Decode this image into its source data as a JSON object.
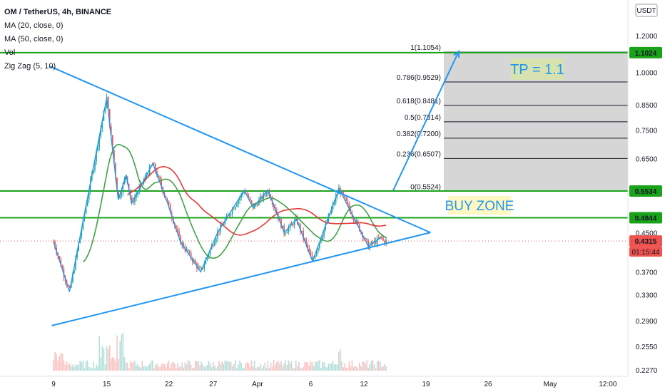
{
  "header": {
    "title": "OM / TetherUS, 4h, BINANCE",
    "indicators": [
      "MA (20, close, 0)",
      "MA (50, close, 0)",
      "Vol",
      "Zig Zag (5, 10)"
    ]
  },
  "axis": {
    "currency": "USDT",
    "price_ticks": [
      "1.2000",
      "1.0000",
      "0.8500",
      "0.7500",
      "0.6500",
      "0.5500",
      "0.4500",
      "0.3700",
      "0.3300",
      "0.2900",
      "0.2550",
      "0.2270"
    ],
    "price_values": [
      1.2,
      1.0,
      0.85,
      0.75,
      0.65,
      0.55,
      0.45,
      0.37,
      0.33,
      0.29,
      0.255,
      0.227
    ],
    "time_ticks": [
      "9",
      "15",
      "22",
      "27",
      "Apr",
      "6",
      "12",
      "19",
      "26",
      "May",
      "12:00"
    ]
  },
  "price_tags": [
    {
      "label": "1.1024",
      "value": 1.1024,
      "color": "#1aa31a"
    },
    {
      "label": "0.5534",
      "value": 0.5534,
      "color": "#1aa31a"
    },
    {
      "label": "0.4844",
      "value": 0.4844,
      "color": "#1aa31a"
    },
    {
      "label": "0.4315",
      "value": 0.4315,
      "color": "#ef5350"
    }
  ],
  "countdown": "01:15:44",
  "fib_levels": [
    {
      "label": "1(1.1054)",
      "value": 1.1054
    },
    {
      "label": "0.786(0.9529)",
      "value": 0.9529
    },
    {
      "label": "0.618(0.8481)",
      "value": 0.8481
    },
    {
      "label": "0.5(0.7814)",
      "value": 0.7814
    },
    {
      "label": "0.382(0.7200)",
      "value": 0.72
    },
    {
      "label": "0.236(0.6507)",
      "value": 0.6507
    },
    {
      "label": "0(0.5524)",
      "value": 0.5524
    }
  ],
  "annotations": {
    "tp": "TP = 1.1",
    "buy_zone": "BUY ZONE"
  },
  "colors": {
    "green": "#1aa31a",
    "blue": "#2196f3",
    "red_ma": "#e53935",
    "green_ma": "#43a047",
    "up": "#26a69a",
    "down": "#ef5350",
    "fib_fill": "#c8c8c8"
  },
  "chart_data": {
    "type": "candlestick",
    "symbol": "OM / TetherUS, 4h, BINANCE",
    "y_scale": "log",
    "ylim": [
      0.22,
      1.3
    ],
    "horizontal_levels": [
      1.1024,
      0.5534,
      0.4844
    ],
    "last_price": 0.4315,
    "zigzag_pivots": [
      {
        "t": 9.0,
        "p": 0.43
      },
      {
        "t": 10.8,
        "p": 0.335
      },
      {
        "t": 15.0,
        "p": 0.88
      },
      {
        "t": 16.3,
        "p": 0.53
      },
      {
        "t": 17.2,
        "p": 0.6
      },
      {
        "t": 17.8,
        "p": 0.52
      },
      {
        "t": 20.2,
        "p": 0.635
      },
      {
        "t": 21.8,
        "p": 0.525
      },
      {
        "t": 23.3,
        "p": 0.43
      },
      {
        "t": 25.6,
        "p": 0.37
      },
      {
        "t": 27.5,
        "p": 0.45
      },
      {
        "t": 30.5,
        "p": 0.555
      },
      {
        "t": 31.5,
        "p": 0.51
      },
      {
        "t": 33.2,
        "p": 0.555
      },
      {
        "t": 35.0,
        "p": 0.45
      },
      {
        "t": 36.4,
        "p": 0.48
      },
      {
        "t": 38.2,
        "p": 0.39
      },
      {
        "t": 41.2,
        "p": 0.56
      },
      {
        "t": 44.5,
        "p": 0.42
      },
      {
        "t": 46.0,
        "p": 0.44
      }
    ],
    "triangle_upper": [
      {
        "t": 8.6,
        "p": 1.03
      },
      {
        "t": 51.5,
        "p": 0.45
      }
    ],
    "triangle_lower": [
      {
        "t": 8.8,
        "p": 0.283
      },
      {
        "t": 51.5,
        "p": 0.45
      }
    ],
    "projection": [
      {
        "t": 47.3,
        "p": 0.555
      },
      {
        "t": 54.7,
        "p": 1.11
      }
    ]
  }
}
